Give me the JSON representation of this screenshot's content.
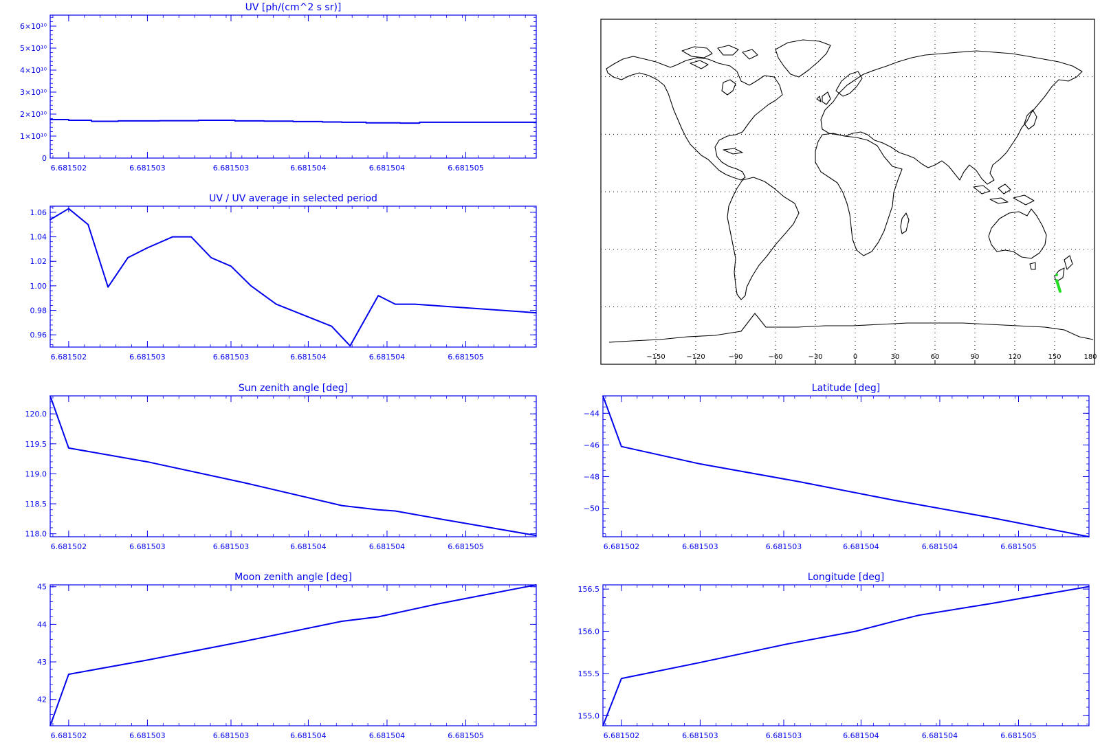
{
  "colors": {
    "plot": "#0000ee",
    "map_lines": "#000000",
    "track": "#22dd22",
    "background": "#ffffff"
  },
  "chart_data": [
    {
      "id": "uv",
      "type": "line",
      "step": true,
      "title": "UV [ph/(cm^2 s sr)]",
      "x": [
        0.0,
        0.038,
        0.085,
        0.14,
        0.225,
        0.305,
        0.38,
        0.44,
        0.5,
        0.56,
        0.6,
        0.65,
        0.72,
        0.76,
        0.8,
        1.0
      ],
      "values": [
        17500000000.0,
        17200000000.0,
        16700000000.0,
        16900000000.0,
        17000000000.0,
        17200000000.0,
        16900000000.0,
        16800000000.0,
        16600000000.0,
        16400000000.0,
        16300000000.0,
        16000000000.0,
        15900000000.0,
        16300000000.0,
        16300000000.0,
        16300000000.0
      ],
      "ylim": [
        0,
        65000000000.0
      ],
      "y_ticks": [
        0,
        10000000000.0,
        20000000000.0,
        30000000000.0,
        40000000000.0,
        50000000000.0,
        60000000000.0
      ],
      "y_tick_labels": [
        "0",
        "1×10¹⁰",
        "2×10¹⁰",
        "3×10¹⁰",
        "4×10¹⁰",
        "5×10¹⁰",
        "6×10¹⁰"
      ],
      "x_tick_labels": [
        "6.681502",
        "6.681503",
        "6.681503",
        "6.681504",
        "6.681504",
        "6.681505"
      ]
    },
    {
      "id": "uv_ratio",
      "type": "line",
      "title": "UV / UV average in selected period",
      "x": [
        0.0,
        0.038,
        0.078,
        0.119,
        0.16,
        0.2,
        0.252,
        0.29,
        0.331,
        0.372,
        0.413,
        0.465,
        0.579,
        0.617,
        0.675,
        0.71,
        0.75,
        1.0
      ],
      "values": [
        1.054,
        1.063,
        1.05,
        0.999,
        1.023,
        1.031,
        1.04,
        1.04,
        1.023,
        1.016,
        1.0,
        0.985,
        0.967,
        0.951,
        0.992,
        0.985,
        0.985,
        0.978
      ],
      "ylim": [
        0.95,
        1.065
      ],
      "y_ticks": [
        0.96,
        0.98,
        1.0,
        1.02,
        1.04,
        1.06
      ],
      "y_tick_labels": [
        "0.96",
        "0.98",
        "1.00",
        "1.02",
        "1.04",
        "1.06"
      ],
      "x_tick_labels": [
        "6.681502",
        "6.681503",
        "6.681503",
        "6.681504",
        "6.681504",
        "6.681505"
      ]
    },
    {
      "id": "sun_zenith",
      "type": "line",
      "title": "Sun zenith angle [deg]",
      "x": [
        0.0,
        0.038,
        0.2,
        0.4,
        0.6,
        0.675,
        0.71,
        0.8,
        1.0
      ],
      "values": [
        120.3,
        119.43,
        119.2,
        118.85,
        118.47,
        118.4,
        118.38,
        118.25,
        117.97
      ],
      "ylim": [
        117.95,
        120.3
      ],
      "y_ticks": [
        118.0,
        118.5,
        119.0,
        119.5,
        120.0
      ],
      "y_tick_labels": [
        "118.0",
        "118.5",
        "119.0",
        "119.5",
        "120.0"
      ],
      "x_tick_labels": [
        "6.681502",
        "6.681503",
        "6.681503",
        "6.681504",
        "6.681504",
        "6.681505"
      ]
    },
    {
      "id": "moon_zenith",
      "type": "line",
      "title": "Moon zenith angle [deg]",
      "x": [
        0.0,
        0.038,
        0.2,
        0.4,
        0.6,
        0.675,
        0.8,
        1.0
      ],
      "values": [
        41.3,
        42.67,
        43.05,
        43.55,
        44.08,
        44.2,
        44.55,
        45.05
      ],
      "ylim": [
        41.3,
        45.05
      ],
      "y_ticks": [
        42,
        43,
        44,
        45
      ],
      "y_tick_labels": [
        "42",
        "43",
        "44",
        "45"
      ],
      "x_tick_labels": [
        "6.681502",
        "6.681503",
        "6.681503",
        "6.681504",
        "6.681504",
        "6.681505"
      ]
    },
    {
      "id": "latitude",
      "type": "line",
      "title": "Latitude [deg]",
      "x": [
        0.0,
        0.038,
        0.2,
        0.4,
        0.6,
        0.8,
        1.0
      ],
      "values": [
        -42.9,
        -46.1,
        -47.2,
        -48.3,
        -49.5,
        -50.6,
        -51.8
      ],
      "ylim": [
        -51.8,
        -42.9
      ],
      "y_ticks": [
        -50,
        -48,
        -46,
        -44
      ],
      "y_tick_labels": [
        "−50",
        "−48",
        "−46",
        "−44"
      ],
      "x_tick_labels": [
        "6.681502",
        "6.681503",
        "6.681503",
        "6.681504",
        "6.681504",
        "6.681505"
      ]
    },
    {
      "id": "longitude",
      "type": "line",
      "title": "Longitude [deg]",
      "x": [
        0.0,
        0.038,
        0.2,
        0.38,
        0.52,
        0.6,
        0.65,
        0.8,
        1.0
      ],
      "values": [
        154.88,
        155.44,
        155.63,
        155.85,
        156.0,
        156.12,
        156.19,
        156.33,
        156.53
      ],
      "ylim": [
        154.88,
        156.55
      ],
      "y_ticks": [
        155.0,
        155.5,
        156.0,
        156.5
      ],
      "y_tick_labels": [
        "155.0",
        "155.5",
        "156.0",
        "156.5"
      ],
      "x_tick_labels": [
        "6.681502",
        "6.681503",
        "6.681503",
        "6.681504",
        "6.681504",
        "6.681505"
      ]
    }
  ],
  "map": {
    "type": "world_map",
    "projection": "equirectangular",
    "x_tick_labels": [
      "−150",
      "−120",
      "−90",
      "−60",
      "−30",
      "0",
      "30",
      "60",
      "90",
      "120",
      "150",
      "180"
    ],
    "grid": "dotted",
    "track": {
      "longitude": [
        155.2,
        155.6
      ],
      "latitude": [
        -43.0,
        -51.5
      ]
    }
  }
}
